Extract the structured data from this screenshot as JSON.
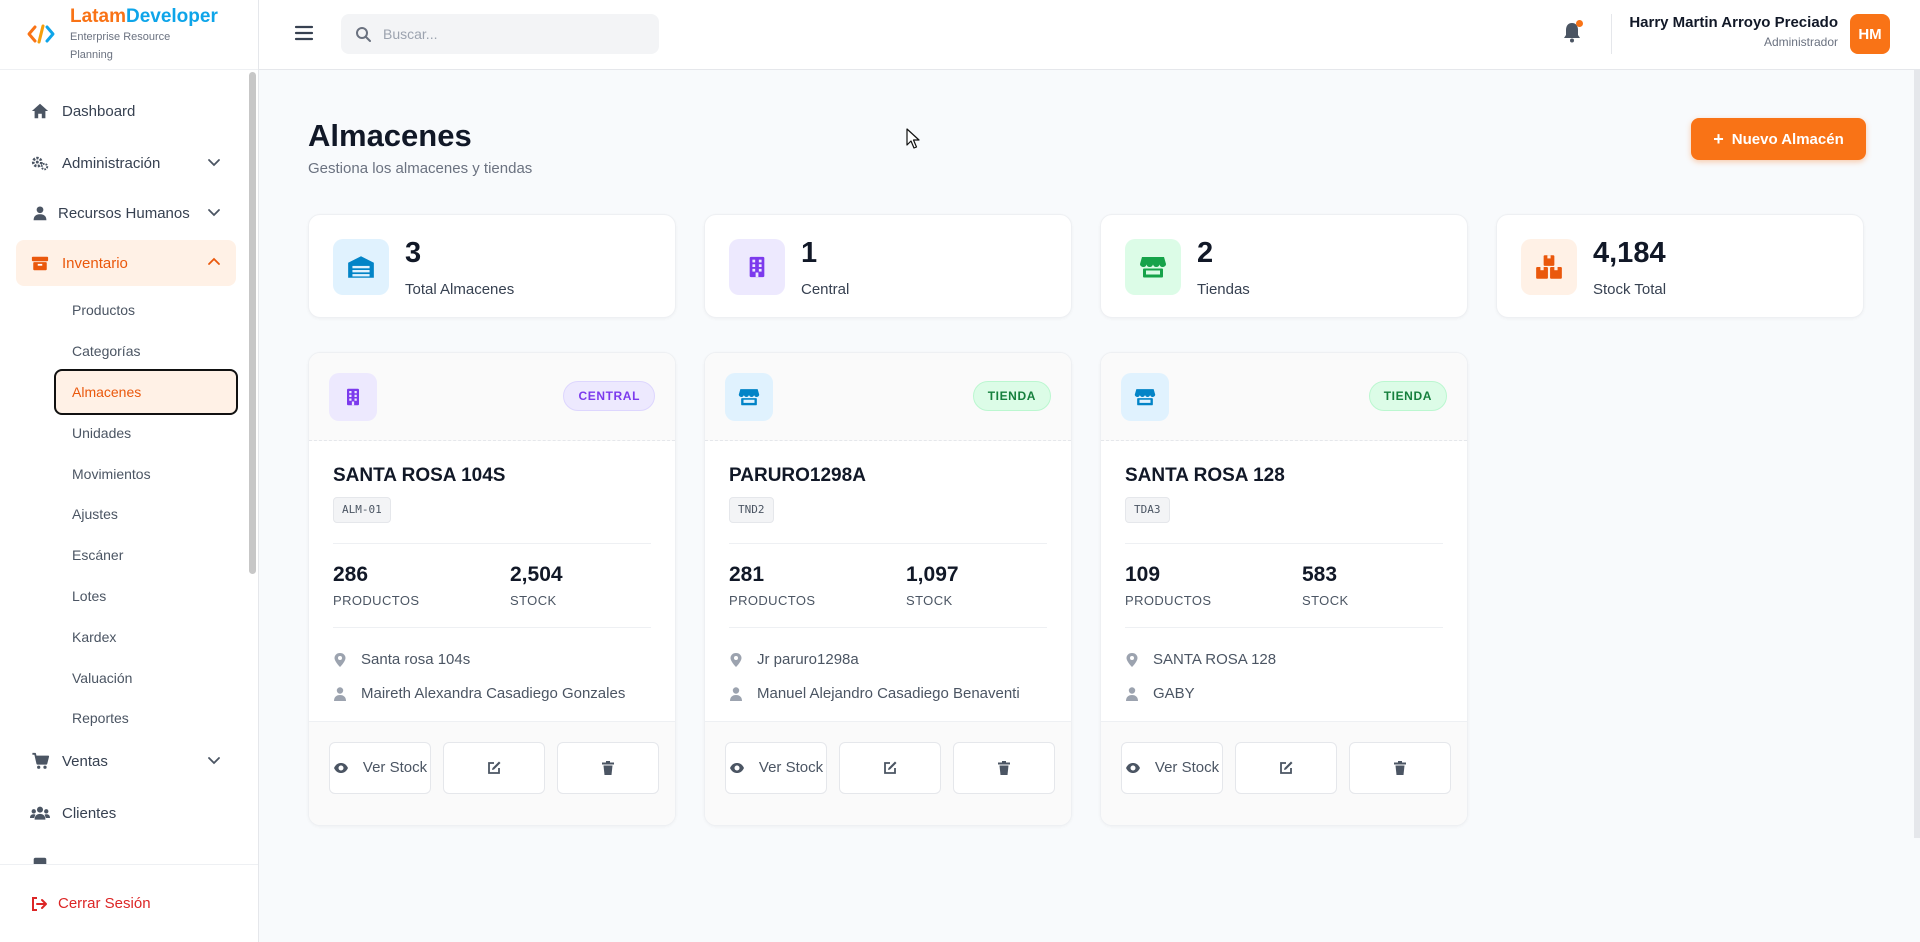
{
  "brand": {
    "name_a": "Latam",
    "name_b": "Developer",
    "subtitle": "Enterprise Resource Planning"
  },
  "sidebar": {
    "items": [
      {
        "label": "Dashboard",
        "icon": "home-icon"
      },
      {
        "label": "Administración",
        "icon": "gears-icon"
      },
      {
        "label": "Recursos Humanos",
        "icon": "user-icon"
      },
      {
        "label": "Inventario",
        "icon": "box-icon"
      },
      {
        "label": "Ventas",
        "icon": "cart-icon"
      },
      {
        "label": "Clientes",
        "icon": "users-icon"
      }
    ],
    "inventory_sub": [
      "Productos",
      "Categorías",
      "Almacenes",
      "Unidades",
      "Movimientos",
      "Ajustes",
      "Escáner",
      "Lotes",
      "Kardex",
      "Valuación",
      "Reportes"
    ],
    "logout": "Cerrar Sesión"
  },
  "header": {
    "search_placeholder": "Buscar...",
    "user_name": "Harry Martin Arroyo Preciado",
    "user_role": "Administrador",
    "avatar_initials": "HM"
  },
  "page": {
    "title": "Almacenes",
    "subtitle": "Gestiona los almacenes y tiendas",
    "new_button": "Nuevo Almacén"
  },
  "stats": [
    {
      "value": "3",
      "label": "Total Almacenes",
      "icon": "warehouse-icon",
      "color": "#0284c7",
      "bg": "#e0f2fe"
    },
    {
      "value": "1",
      "label": "Central",
      "icon": "building-icon",
      "color": "#7c3aed",
      "bg": "#ede9fe"
    },
    {
      "value": "2",
      "label": "Tiendas",
      "icon": "store-icon",
      "color": "#16a34a",
      "bg": "#dcfce7"
    },
    {
      "value": "4,184",
      "label": "Stock Total",
      "icon": "boxes-icon",
      "color": "#ea580c",
      "bg": "#fff1e6"
    }
  ],
  "warehouses": [
    {
      "badge": "CENTRAL",
      "name": "SANTA ROSA 104S",
      "code": "ALM-01",
      "products": "286",
      "products_label": "PRODUCTOS",
      "stock": "2,504",
      "stock_label": "STOCK",
      "address": "Santa rosa 104s",
      "manager": "Maireth Alexandra Casadiego Gonzales",
      "view_label": "Ver Stock"
    },
    {
      "badge": "TIENDA",
      "name": "PARURO1298A",
      "code": "TND2",
      "products": "281",
      "products_label": "PRODUCTOS",
      "stock": "1,097",
      "stock_label": "STOCK",
      "address": "Jr paruro1298a",
      "manager": "Manuel Alejandro Casadiego Benaventi",
      "view_label": "Ver Stock"
    },
    {
      "badge": "TIENDA",
      "name": "SANTA ROSA 128",
      "code": "TDA3",
      "products": "109",
      "products_label": "PRODUCTOS",
      "stock": "583",
      "stock_label": "STOCK",
      "address": "SANTA ROSA 128",
      "manager": "GABY",
      "view_label": "Ver Stock"
    }
  ],
  "colors": {
    "accent": "#f97316",
    "brand_blue": "#0ea5e9",
    "danger": "#dc2626"
  }
}
